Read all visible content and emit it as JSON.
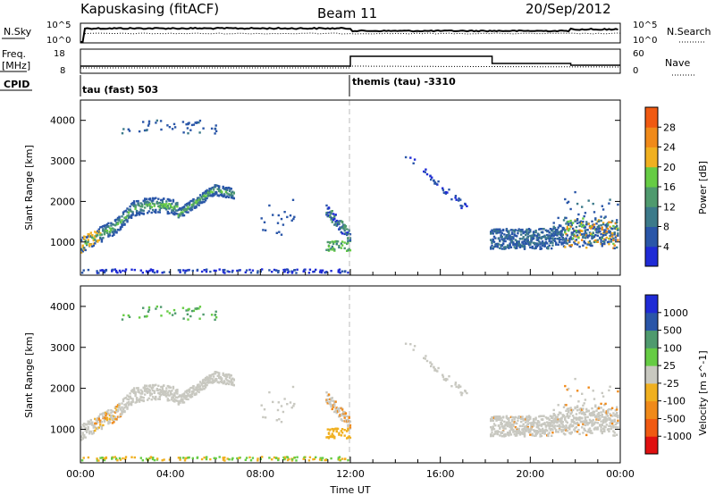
{
  "header": {
    "station": "Kapuskasing (fitACF)",
    "beam": "Beam 11",
    "date": "20/Sep/2012"
  },
  "noise_panel": {
    "left_label": "N.Sky",
    "left_ticks": [
      "10^5",
      "10^0"
    ],
    "right_ticks": [
      "10^5",
      "10^0"
    ],
    "right_label": "N.Search"
  },
  "freq_panel": {
    "left_label_top": "Freq.",
    "left_label_unit": "[MHz]",
    "left_ticks": [
      "18",
      "8"
    ],
    "right_ticks": [
      "60",
      "0"
    ],
    "right_label": "Nave",
    "cpid_label": "CPID"
  },
  "cpid": {
    "first": "tau (fast) 503",
    "second": "themis (tau) -3310"
  },
  "colors": {
    "power_scale": [
      "#1f2bd6",
      "#2a56a8",
      "#3c7a8a",
      "#4f9a6e",
      "#66cc44",
      "#f0b020",
      "#f08a1a",
      "#f05a12",
      "#e01010"
    ],
    "velocity_scale": [
      "#e01010",
      "#f05a12",
      "#f08a1a",
      "#f0b020",
      "#c8c8c0",
      "#66cc44",
      "#4f9a6e",
      "#2a56a8",
      "#1f2bd6"
    ]
  },
  "chart_data": [
    {
      "type": "heatmap",
      "panel": "power",
      "ylabel": "Slant Range [km]",
      "ylim": [
        180,
        4500
      ],
      "yticks": [
        1000,
        2000,
        3000,
        4000
      ],
      "xlim": [
        0,
        24
      ],
      "colorbar": {
        "label": "Power [dB]",
        "ticks": [
          "4",
          "8",
          "12",
          "16",
          "20",
          "24",
          "28"
        ],
        "range": [
          0,
          32
        ]
      }
    },
    {
      "type": "heatmap",
      "panel": "velocity",
      "ylabel": "Slant Range [km]",
      "ylim": [
        180,
        4500
      ],
      "yticks": [
        1000,
        2000,
        3000,
        4000
      ],
      "xlim": [
        0,
        24
      ],
      "xticks": [
        0,
        4,
        8,
        12,
        16,
        20,
        24
      ],
      "xtick_labels": [
        "00:00",
        "04:00",
        "08:00",
        "12:00",
        "16:00",
        "20:00",
        "00:00"
      ],
      "xlabel": "Time UT",
      "colorbar": {
        "label": "Velocity [m s^-1]",
        "ticks": [
          "1000",
          "500",
          "100",
          "25",
          "-25",
          "-100",
          "-500",
          "-1000"
        ]
      }
    }
  ]
}
